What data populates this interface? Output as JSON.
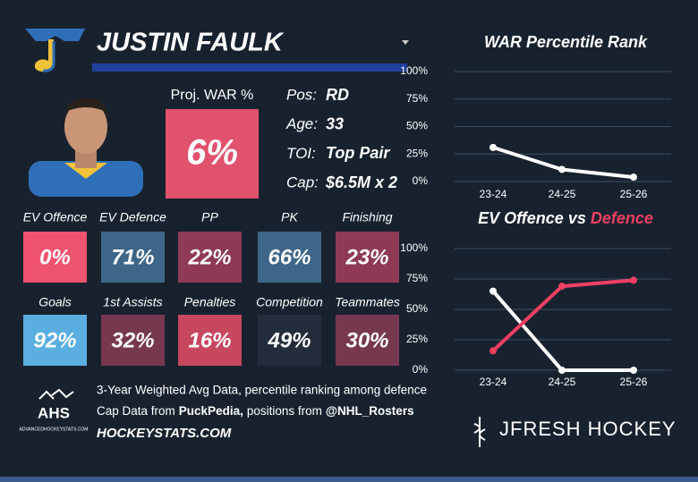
{
  "player": {
    "name": "JUSTIN FAULK",
    "proj_label": "Proj. WAR %",
    "proj_value": "6%",
    "proj_color": "#e0526e",
    "bio": [
      {
        "label": "Pos:",
        "value": "RD"
      },
      {
        "label": "Age:",
        "value": "33"
      },
      {
        "label": "TOI:",
        "value": "Top Pair"
      },
      {
        "label": "Cap:",
        "value": "$6.5M x 2"
      }
    ]
  },
  "stats": [
    [
      {
        "label": "EV Offence",
        "value": "0%",
        "color": "#ef5370"
      },
      {
        "label": "EV Defence",
        "value": "71%",
        "color": "#3e6688"
      },
      {
        "label": "PP",
        "value": "22%",
        "color": "#8e3a56"
      },
      {
        "label": "PK",
        "value": "66%",
        "color": "#3e6688"
      },
      {
        "label": "Finishing",
        "value": "23%",
        "color": "#8e3a56"
      }
    ],
    [
      {
        "label": "Goals",
        "value": "92%",
        "color": "#5aaee0"
      },
      {
        "label": "1st Assists",
        "value": "32%",
        "color": "#77384f"
      },
      {
        "label": "Penalties",
        "value": "16%",
        "color": "#c7475f"
      },
      {
        "label": "Competition",
        "value": "49%",
        "color": "#222c3b"
      },
      {
        "label": "Teammates",
        "value": "30%",
        "color": "#77384f"
      }
    ]
  ],
  "notes": {
    "line1": "3-Year Weighted Avg Data, percentile ranking among defence",
    "line2": [
      {
        "text": "Cap Data from",
        "bold": false
      },
      {
        "text": "PuckPedia,",
        "bold": true
      },
      {
        "text": "positions from",
        "bold": false
      },
      {
        "text": "@NHL_Rosters",
        "bold": true
      }
    ],
    "site": "HOCKEYSTATS.COM",
    "ahs": "AHS",
    "ahs_sub": "ADVANCEDHOCKEYSTATS.COM",
    "brand": "JFRESH HOCKEY"
  },
  "chart_data": [
    {
      "type": "line",
      "title_parts": [
        "WAR Percentile Rank"
      ],
      "categories": [
        "23-24",
        "24-25",
        "25-26"
      ],
      "series": [
        {
          "color": "#ffffff",
          "values": [
            31,
            11,
            4
          ]
        }
      ],
      "ylim": [
        0,
        100
      ],
      "yticks": [
        {
          "value": 0,
          "label": "0%"
        },
        {
          "value": 25,
          "label": "25%"
        },
        {
          "value": 50,
          "label": "50%"
        },
        {
          "value": 75,
          "label": "75%"
        },
        {
          "value": 100,
          "label": "100%"
        }
      ],
      "grid": true
    },
    {
      "type": "line",
      "title_parts": [
        "EV Offence vs",
        "Defence"
      ],
      "categories": [
        "23-24",
        "24-25",
        "25-26"
      ],
      "series": [
        {
          "color": "#ffffff",
          "values": [
            65,
            0,
            0
          ]
        },
        {
          "color": "#ef3f63",
          "values": [
            16,
            69,
            74
          ]
        }
      ],
      "ylim": [
        0,
        100
      ],
      "yticks": [
        {
          "value": 0,
          "label": "0%"
        },
        {
          "value": 25,
          "label": "25%"
        },
        {
          "value": 50,
          "label": "50%"
        },
        {
          "value": 75,
          "label": "75%"
        },
        {
          "value": 100,
          "label": "100%"
        }
      ],
      "grid": true
    }
  ]
}
